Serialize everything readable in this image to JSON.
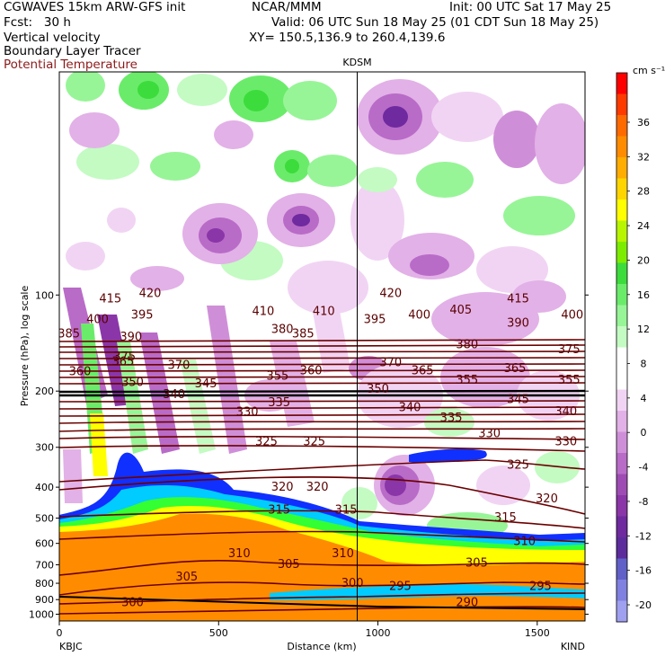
{
  "header": {
    "line1_left": "CGWAVES 15km ARW-GFS init",
    "line1_center": "NCAR/MMM",
    "line1_right": "Init: 00 UTC Sat 17 May 25",
    "line2_left": "Fcst:   30 h",
    "line2_right": "Valid: 06 UTC Sun 18 May 25 (01 CDT Sun 18 May 25)",
    "field1": "Vertical velocity",
    "field2": "Boundary Layer Tracer",
    "field3": "Potential Temperature",
    "xy": "XY= 150.5,136.9 to 260.4,139.6"
  },
  "colors": {
    "theta_contour": "#6b0000",
    "tracer_orange": "#ff8c00",
    "tracer_yellow": "#ffff00",
    "tracer_green": "#33ff33",
    "tracer_cyan": "#00ccff",
    "tracer_blue": "#1030ff"
  },
  "chart_data": {
    "type": "heatmap",
    "title": "KDSM",
    "xlabel": "Distance (km)",
    "ylabel": "Pressure (hPa), log scale",
    "x_tick_values": [
      0,
      500,
      1000,
      1500
    ],
    "x_tick_labels": [
      "0",
      "500",
      "1000",
      "1500"
    ],
    "xlim": [
      0,
      1650
    ],
    "x_endpoints": {
      "left": "KBJC",
      "right": "KIND"
    },
    "y_scale": "log",
    "y_tick_values": [
      100,
      200,
      300,
      400,
      500,
      600,
      700,
      800,
      900,
      1000
    ],
    "y_tick_labels": [
      "100",
      "200",
      "300",
      "400",
      "500",
      "600",
      "700",
      "800",
      "900",
      "1000"
    ],
    "ylim": [
      1050,
      20
    ],
    "marker_x_km": 935,
    "marker_label": "KDSM",
    "colorbar": {
      "units": "cm s⁻¹",
      "tick_labels": [
        "36",
        "32",
        "28",
        "24",
        "20",
        "16",
        "12",
        "8",
        "4",
        "0",
        "-4",
        "-8",
        "-12",
        "-16",
        "-20"
      ],
      "colors": [
        "#ff0000",
        "#ff3a00",
        "#ff6a00",
        "#ff8c00",
        "#ffad00",
        "#ffd500",
        "#ffff00",
        "#b7f500",
        "#7ced00",
        "#3cdc3c",
        "#6aec6a",
        "#97f597",
        "#c3fbc3",
        "#ffffff",
        "#ffffff",
        "#f1d4f3",
        "#e2b1e7",
        "#cf8fd8",
        "#b96bc8",
        "#9e4cb4",
        "#8a36a8",
        "#6e2a9e",
        "#5c2c9c",
        "#6060c8",
        "#8080e0",
        "#a0a0f0"
      ]
    },
    "theta_contour_labels": [
      {
        "x_km": 160,
        "p_hPa": 104,
        "label": "415"
      },
      {
        "x_km": 285,
        "p_hPa": 100,
        "label": "420"
      },
      {
        "x_km": 120,
        "p_hPa": 121,
        "label": "400"
      },
      {
        "x_km": 260,
        "p_hPa": 117,
        "label": "395"
      },
      {
        "x_km": 30,
        "p_hPa": 134,
        "label": "385"
      },
      {
        "x_km": 225,
        "p_hPa": 137,
        "label": "390"
      },
      {
        "x_km": 205,
        "p_hPa": 158,
        "label": "375"
      },
      {
        "x_km": 65,
        "p_hPa": 176,
        "label": "360"
      },
      {
        "x_km": 200,
        "p_hPa": 164,
        "label": "365"
      },
      {
        "x_km": 230,
        "p_hPa": 190,
        "label": "350"
      },
      {
        "x_km": 375,
        "p_hPa": 168,
        "label": "370"
      },
      {
        "x_km": 360,
        "p_hPa": 208,
        "label": "340"
      },
      {
        "x_km": 460,
        "p_hPa": 192,
        "label": "345"
      },
      {
        "x_km": 590,
        "p_hPa": 236,
        "label": "330"
      },
      {
        "x_km": 700,
        "p_hPa": 130,
        "label": "380"
      },
      {
        "x_km": 685,
        "p_hPa": 182,
        "label": "355"
      },
      {
        "x_km": 790,
        "p_hPa": 175,
        "label": "360"
      },
      {
        "x_km": 690,
        "p_hPa": 220,
        "label": "335"
      },
      {
        "x_km": 640,
        "p_hPa": 114,
        "label": "410"
      },
      {
        "x_km": 830,
        "p_hPa": 114,
        "label": "410"
      },
      {
        "x_km": 765,
        "p_hPa": 134,
        "label": "385"
      },
      {
        "x_km": 650,
        "p_hPa": 292,
        "label": "325"
      },
      {
        "x_km": 800,
        "p_hPa": 292,
        "label": "325"
      },
      {
        "x_km": 700,
        "p_hPa": 405,
        "label": "320"
      },
      {
        "x_km": 810,
        "p_hPa": 405,
        "label": "320"
      },
      {
        "x_km": 690,
        "p_hPa": 478,
        "label": "315"
      },
      {
        "x_km": 565,
        "p_hPa": 655,
        "label": "310"
      },
      {
        "x_km": 400,
        "p_hPa": 775,
        "label": "305"
      },
      {
        "x_km": 720,
        "p_hPa": 708,
        "label": "305"
      },
      {
        "x_km": 230,
        "p_hPa": 930,
        "label": "300"
      },
      {
        "x_km": 1040,
        "p_hPa": 100,
        "label": "420"
      },
      {
        "x_km": 990,
        "p_hPa": 121,
        "label": "395"
      },
      {
        "x_km": 1130,
        "p_hPa": 117,
        "label": "400"
      },
      {
        "x_km": 1260,
        "p_hPa": 113,
        "label": "405"
      },
      {
        "x_km": 1440,
        "p_hPa": 104,
        "label": "415"
      },
      {
        "x_km": 1610,
        "p_hPa": 117,
        "label": "400"
      },
      {
        "x_km": 1440,
        "p_hPa": 124,
        "label": "390"
      },
      {
        "x_km": 1040,
        "p_hPa": 165,
        "label": "370"
      },
      {
        "x_km": 1280,
        "p_hPa": 145,
        "label": "380"
      },
      {
        "x_km": 1600,
        "p_hPa": 150,
        "label": "375"
      },
      {
        "x_km": 1140,
        "p_hPa": 175,
        "label": "365"
      },
      {
        "x_km": 1430,
        "p_hPa": 172,
        "label": "365"
      },
      {
        "x_km": 1000,
        "p_hPa": 200,
        "label": "350"
      },
      {
        "x_km": 1280,
        "p_hPa": 187,
        "label": "355"
      },
      {
        "x_km": 1600,
        "p_hPa": 187,
        "label": "355"
      },
      {
        "x_km": 1100,
        "p_hPa": 228,
        "label": "340"
      },
      {
        "x_km": 1230,
        "p_hPa": 246,
        "label": "335"
      },
      {
        "x_km": 1440,
        "p_hPa": 215,
        "label": "345"
      },
      {
        "x_km": 1590,
        "p_hPa": 235,
        "label": "340"
      },
      {
        "x_km": 1350,
        "p_hPa": 275,
        "label": "330"
      },
      {
        "x_km": 1590,
        "p_hPa": 292,
        "label": "330"
      },
      {
        "x_km": 1440,
        "p_hPa": 345,
        "label": "325"
      },
      {
        "x_km": 1530,
        "p_hPa": 440,
        "label": "320"
      },
      {
        "x_km": 1400,
        "p_hPa": 505,
        "label": "315"
      },
      {
        "x_km": 1460,
        "p_hPa": 600,
        "label": "310"
      },
      {
        "x_km": 1310,
        "p_hPa": 700,
        "label": "305"
      },
      {
        "x_km": 1510,
        "p_hPa": 830,
        "label": "295"
      },
      {
        "x_km": 920,
        "p_hPa": 810,
        "label": "300"
      },
      {
        "x_km": 1070,
        "p_hPa": 830,
        "label": "295"
      },
      {
        "x_km": 1280,
        "p_hPa": 930,
        "label": "290"
      },
      {
        "x_km": 900,
        "p_hPa": 478,
        "label": "315"
      },
      {
        "x_km": 890,
        "p_hPa": 655,
        "label": "310"
      }
    ]
  }
}
